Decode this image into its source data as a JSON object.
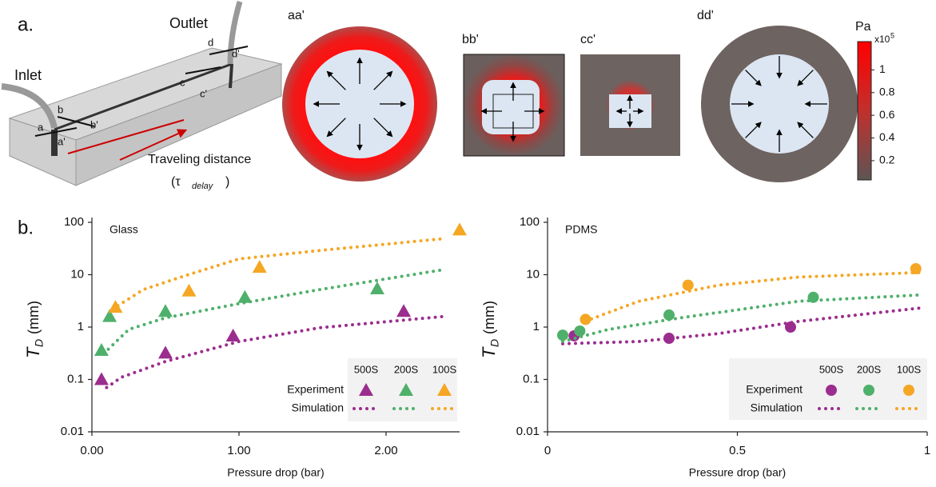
{
  "figure": {
    "panel_a": "a.",
    "inlet": "Inlet",
    "outlet": "Outlet",
    "section_marks": [
      "a",
      "a'",
      "b",
      "b'",
      "c",
      "c'",
      "d",
      "d'"
    ],
    "travel": "Traveling distance",
    "travel_open": "(τ",
    "travel_sub": "delay",
    "travel_close": ")",
    "sections": [
      "aa'",
      "bb'",
      "cc'",
      "dd'"
    ],
    "colorbar": {
      "unit": "Pa",
      "scale": "x10",
      "scale_exp": "5",
      "ticks": [
        1,
        0.8,
        0.6,
        0.4,
        0.2
      ],
      "lim": [
        0.03,
        1.25
      ]
    },
    "panel_b": "b."
  },
  "chart_data": [
    {
      "type": "scatter",
      "title": "Glass",
      "x_label": "Pressure drop (bar)",
      "y_label": "T",
      "y_label_sub": "D",
      "y_label_unit": "(mm)",
      "xlim": [
        0,
        2.5
      ],
      "xticks": [
        {
          "value": 0,
          "label": "0.00"
        },
        {
          "value": 1,
          "label": "1.00"
        },
        {
          "value": 2,
          "label": "2.00"
        }
      ],
      "ylim": [
        0.01,
        100
      ],
      "yticks": [
        0.01,
        0.1,
        1,
        10,
        100
      ],
      "log_y": true,
      "marker": "triangle",
      "legend_rows": [
        "Experiment",
        "Simulation"
      ],
      "series": [
        {
          "name": "500S",
          "color": "#9b2d8e",
          "experiment": {
            "x": [
              0.065,
              0.5,
              0.96,
              2.12
            ],
            "values": [
              0.1,
              0.32,
              0.68,
              2.0
            ]
          },
          "simulation": {
            "x": [
              0.1,
              0.2,
              0.5,
              1.0,
              1.55,
              2.4
            ],
            "values": [
              0.07,
              0.11,
              0.22,
              0.53,
              0.97,
              1.6
            ]
          }
        },
        {
          "name": "200S",
          "color": "#4fb06b",
          "experiment": {
            "x": [
              0.065,
              0.12,
              0.5,
              1.04,
              1.94
            ],
            "values": [
              0.36,
              1.6,
              2.0,
              3.7,
              5.4
            ]
          },
          "simulation": {
            "x": [
              0.08,
              0.25,
              0.5,
              1.0,
              1.55,
              2.4
            ],
            "values": [
              0.31,
              0.9,
              1.5,
              2.8,
              5.2,
              12.6
            ]
          }
        },
        {
          "name": "100S",
          "color": "#f5a623",
          "experiment": {
            "x": [
              0.16,
              0.66,
              1.14,
              2.5
            ],
            "values": [
              2.4,
              4.9,
              13.9,
              72
            ]
          },
          "simulation": {
            "x": [
              0.14,
              0.35,
              0.63,
              1.0,
              1.55,
              2.4
            ],
            "values": [
              2.2,
              5.2,
              9.5,
              20,
              29,
              49
            ]
          }
        }
      ]
    },
    {
      "type": "scatter",
      "title": "PDMS",
      "x_label": "Pressure drop (bar)",
      "y_label": "T",
      "y_label_sub": "D",
      "y_label_unit": "(mm)",
      "xlim": [
        0,
        1
      ],
      "xticks": [
        0,
        0.5,
        1
      ],
      "ylim": [
        0.01,
        100
      ],
      "yticks": [
        0.01,
        0.1,
        1,
        10,
        100
      ],
      "log_y": true,
      "marker": "circle",
      "legend_rows": [
        "Experiment",
        "Simulation"
      ],
      "series": [
        {
          "name": "500S",
          "color": "#9b2d8e",
          "experiment": {
            "x": [
              0.07,
              0.32,
              0.64
            ],
            "values": [
              0.68,
              0.61,
              1.0
            ]
          },
          "simulation": {
            "x": [
              0.04,
              0.24,
              0.45,
              0.66,
              0.98
            ],
            "values": [
              0.48,
              0.53,
              0.75,
              1.28,
              2.3
            ]
          }
        },
        {
          "name": "200S",
          "color": "#4fb06b",
          "experiment": {
            "x": [
              0.04,
              0.085,
              0.32,
              0.7
            ],
            "values": [
              0.7,
              0.84,
              1.7,
              3.7
            ]
          },
          "simulation": {
            "x": [
              0.04,
              0.16,
              0.35,
              0.66,
              0.98
            ],
            "values": [
              0.53,
              0.9,
              1.5,
              3.1,
              4.1
            ]
          }
        },
        {
          "name": "100S",
          "color": "#f5a623",
          "experiment": {
            "x": [
              0.1,
              0.37,
              0.97
            ],
            "values": [
              1.4,
              6.3,
              13
            ]
          },
          "simulation": {
            "x": [
              0.1,
              0.24,
              0.45,
              0.66,
              0.98
            ],
            "values": [
              1.3,
              3.1,
              6.3,
              9.0,
              11
            ]
          }
        }
      ]
    }
  ]
}
